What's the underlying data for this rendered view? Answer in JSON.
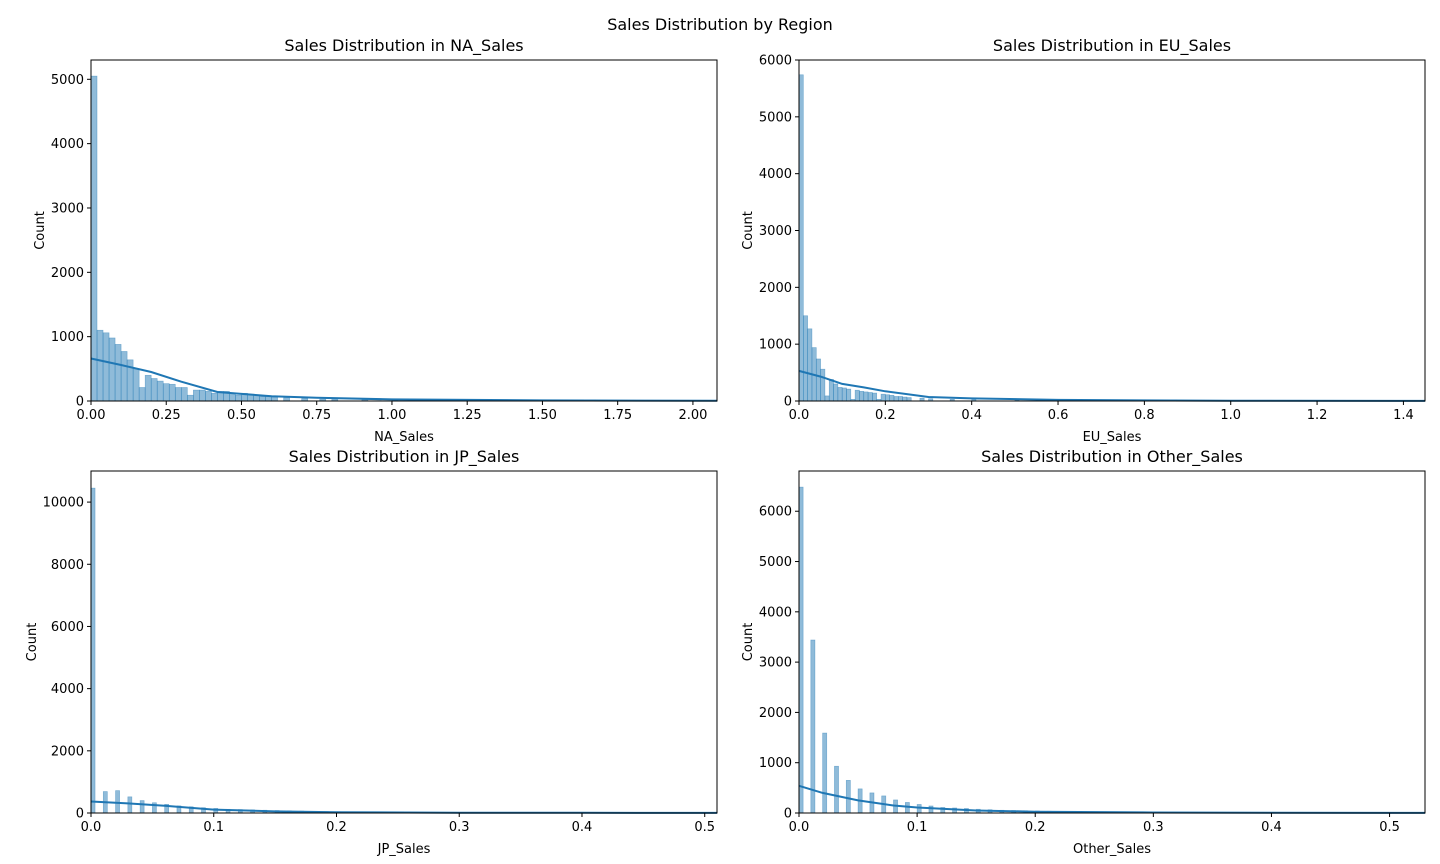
{
  "figure": {
    "title": "Sales Distribution by Region"
  },
  "colors": {
    "bar": "#1f77b4",
    "kde": "#1f77b4"
  },
  "chart_data": [
    {
      "type": "bar",
      "subtype": "histogram+kde",
      "title": "Sales Distribution in NA_Sales",
      "xlabel": "NA_Sales",
      "ylabel": "Count",
      "xlim": [
        0,
        2.08
      ],
      "ylim": [
        0,
        5300
      ],
      "xticks": [
        "0.00",
        "0.25",
        "0.50",
        "0.75",
        "1.00",
        "1.25",
        "1.50",
        "1.75",
        "2.00"
      ],
      "yticks": [
        "0",
        "1000",
        "2000",
        "3000",
        "4000",
        "5000"
      ],
      "bin_width": 0.02,
      "bin_starts": [
        0.0,
        0.02,
        0.04,
        0.06,
        0.08,
        0.1,
        0.12,
        0.14,
        0.16,
        0.18,
        0.2,
        0.22,
        0.24,
        0.26,
        0.28,
        0.3,
        0.32,
        0.34,
        0.36,
        0.38,
        0.4,
        0.42,
        0.44,
        0.46,
        0.48,
        0.5,
        0.52,
        0.54,
        0.56,
        0.58,
        0.6,
        0.64,
        0.7,
        0.76,
        0.8,
        0.9,
        1.0,
        1.2,
        1.5
      ],
      "counts": [
        5050,
        1100,
        1060,
        980,
        880,
        770,
        640,
        500,
        210,
        400,
        350,
        310,
        270,
        260,
        210,
        210,
        90,
        170,
        170,
        150,
        120,
        150,
        150,
        120,
        90,
        120,
        100,
        90,
        70,
        70,
        60,
        50,
        40,
        30,
        25,
        20,
        15,
        10,
        5
      ],
      "kde_x": [
        0.0,
        0.1,
        0.2,
        0.3,
        0.42,
        0.5,
        0.6,
        0.75,
        1.0,
        1.5,
        2.08
      ],
      "kde_y": [
        660,
        560,
        450,
        300,
        140,
        110,
        75,
        50,
        25,
        10,
        3
      ]
    },
    {
      "type": "bar",
      "subtype": "histogram+kde",
      "title": "Sales Distribution in EU_Sales",
      "xlabel": "EU_Sales",
      "ylabel": "Count",
      "xlim": [
        0,
        1.45
      ],
      "ylim": [
        0,
        6000
      ],
      "xticks": [
        "0.0",
        "0.2",
        "0.4",
        "0.6",
        "0.8",
        "1.0",
        "1.2",
        "1.4"
      ],
      "yticks": [
        "0",
        "1000",
        "2000",
        "3000",
        "4000",
        "5000",
        "6000"
      ],
      "bin_width": 0.01,
      "bin_starts": [
        0.0,
        0.01,
        0.02,
        0.03,
        0.04,
        0.05,
        0.06,
        0.07,
        0.08,
        0.09,
        0.1,
        0.11,
        0.12,
        0.13,
        0.14,
        0.15,
        0.16,
        0.17,
        0.18,
        0.19,
        0.2,
        0.21,
        0.22,
        0.23,
        0.24,
        0.25,
        0.28,
        0.3,
        0.35,
        0.4,
        0.5,
        0.6,
        0.8
      ],
      "counts": [
        5740,
        1500,
        1270,
        940,
        740,
        560,
        90,
        380,
        300,
        240,
        230,
        210,
        30,
        190,
        170,
        160,
        150,
        140,
        30,
        120,
        110,
        100,
        80,
        80,
        70,
        60,
        50,
        40,
        30,
        25,
        15,
        10,
        5
      ],
      "kde_x": [
        0.0,
        0.05,
        0.1,
        0.15,
        0.2,
        0.3,
        0.4,
        0.6,
        0.8,
        1.0,
        1.45
      ],
      "kde_y": [
        530,
        430,
        300,
        240,
        170,
        70,
        45,
        20,
        10,
        5,
        2
      ]
    },
    {
      "type": "bar",
      "subtype": "histogram+kde",
      "title": "Sales Distribution in JP_Sales",
      "xlabel": "JP_Sales",
      "ylabel": "Count",
      "xlim": [
        0,
        0.51
      ],
      "ylim": [
        0,
        11000
      ],
      "xticks": [
        "0.0",
        "0.1",
        "0.2",
        "0.3",
        "0.4",
        "0.5"
      ],
      "yticks": [
        "0",
        "2000",
        "4000",
        "6000",
        "8000",
        "10000"
      ],
      "bin_width": 0.0033,
      "bin_starts": [
        0.0,
        0.01,
        0.02,
        0.03,
        0.04,
        0.05,
        0.06,
        0.07,
        0.08,
        0.09,
        0.1,
        0.11,
        0.12,
        0.13,
        0.14,
        0.15,
        0.16,
        0.17,
        0.18,
        0.19,
        0.2,
        0.21
      ],
      "counts": [
        10450,
        690,
        720,
        520,
        400,
        330,
        280,
        230,
        200,
        170,
        150,
        120,
        110,
        100,
        90,
        80,
        70,
        60,
        50,
        45,
        40,
        35
      ],
      "kde_x": [
        0.0,
        0.03,
        0.06,
        0.1,
        0.15,
        0.2,
        0.3,
        0.4,
        0.51
      ],
      "kde_y": [
        370,
        310,
        230,
        110,
        50,
        25,
        10,
        5,
        2
      ]
    },
    {
      "type": "bar",
      "subtype": "histogram+kde",
      "title": "Sales Distribution in Other_Sales",
      "xlabel": "Other_Sales",
      "ylabel": "Count",
      "xlim": [
        0,
        0.53
      ],
      "ylim": [
        0,
        6800
      ],
      "xticks": [
        "0.0",
        "0.1",
        "0.2",
        "0.3",
        "0.4",
        "0.5"
      ],
      "yticks": [
        "0",
        "1000",
        "2000",
        "3000",
        "4000",
        "5000",
        "6000"
      ],
      "bin_width": 0.0035,
      "bin_starts": [
        0.0,
        0.01,
        0.02,
        0.03,
        0.04,
        0.05,
        0.06,
        0.07,
        0.08,
        0.09,
        0.1,
        0.11,
        0.12,
        0.13,
        0.14,
        0.15,
        0.16,
        0.17,
        0.18,
        0.19,
        0.2,
        0.21,
        0.22,
        0.23,
        0.24,
        0.25
      ],
      "counts": [
        6480,
        3440,
        1590,
        930,
        650,
        480,
        400,
        340,
        260,
        210,
        170,
        140,
        110,
        100,
        90,
        75,
        65,
        55,
        50,
        45,
        40,
        35,
        30,
        25,
        20,
        15
      ],
      "kde_x": [
        0.0,
        0.02,
        0.05,
        0.08,
        0.1,
        0.15,
        0.2,
        0.3,
        0.4,
        0.53
      ],
      "kde_y": [
        540,
        400,
        250,
        150,
        110,
        50,
        25,
        10,
        5,
        2
      ]
    }
  ]
}
